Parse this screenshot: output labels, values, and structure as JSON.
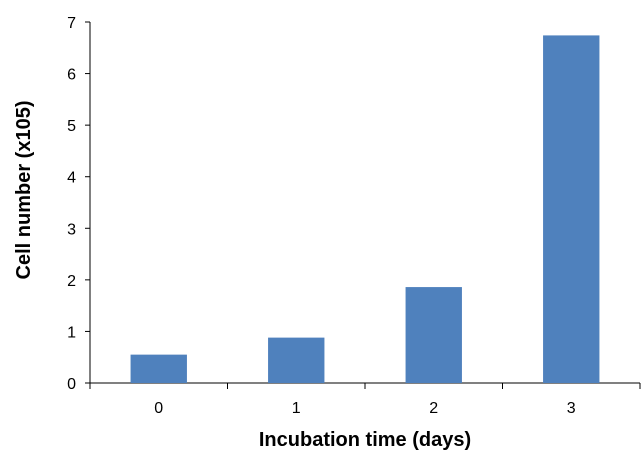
{
  "chart_data": {
    "type": "bar",
    "categories": [
      "0",
      "1",
      "2",
      "3"
    ],
    "values": [
      0.55,
      0.88,
      1.86,
      6.74
    ],
    "series": [
      {
        "values": [
          0.55,
          0.88,
          1.86,
          6.74
        ]
      }
    ],
    "xlabel": "Incubation time (days)",
    "ylabel": "Cell number  (x105)",
    "ylim": [
      0,
      7
    ],
    "yticks": [
      "0",
      "1",
      "2",
      "3",
      "4",
      "5",
      "6",
      "7"
    ],
    "grid": false,
    "legend": "none",
    "bar_color": "#4f81bd"
  }
}
